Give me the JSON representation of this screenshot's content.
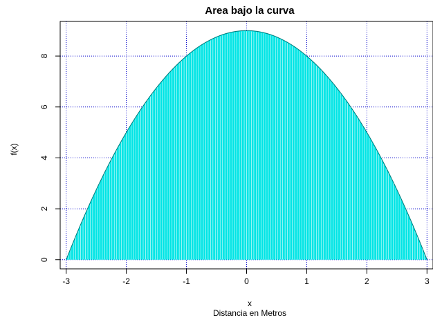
{
  "chart_data": {
    "type": "area",
    "title": "Area bajo la curva",
    "xlabel": "x",
    "subtitle": "Distancia en Metros",
    "ylabel": "f(x)",
    "function": "f(x) = 9 - x^2",
    "x": [
      -3,
      -2.5,
      -2,
      -1.5,
      -1,
      -0.5,
      0,
      0.5,
      1,
      1.5,
      2,
      2.5,
      3
    ],
    "y": [
      0,
      2.75,
      5,
      6.75,
      8,
      8.75,
      9,
      8.75,
      8,
      6.75,
      5,
      2.75,
      0
    ],
    "xlim": [
      -3.1,
      3.1
    ],
    "ylim": [
      -0.36,
      9.36
    ],
    "xticks": [
      -3,
      -2,
      -1,
      0,
      1,
      2,
      3
    ],
    "xtick_labels": [
      "-3",
      "-2",
      "-1",
      "0",
      "1",
      "2",
      "3"
    ],
    "yticks": [
      0,
      2,
      4,
      6,
      8
    ],
    "ytick_labels": [
      "0",
      "2",
      "4",
      "6",
      "8"
    ],
    "grid": true,
    "fill_color": "#00e5e5",
    "stripe_color": "#ffffff",
    "line_color": "#007a7a",
    "grid_color": "#0000cc"
  }
}
